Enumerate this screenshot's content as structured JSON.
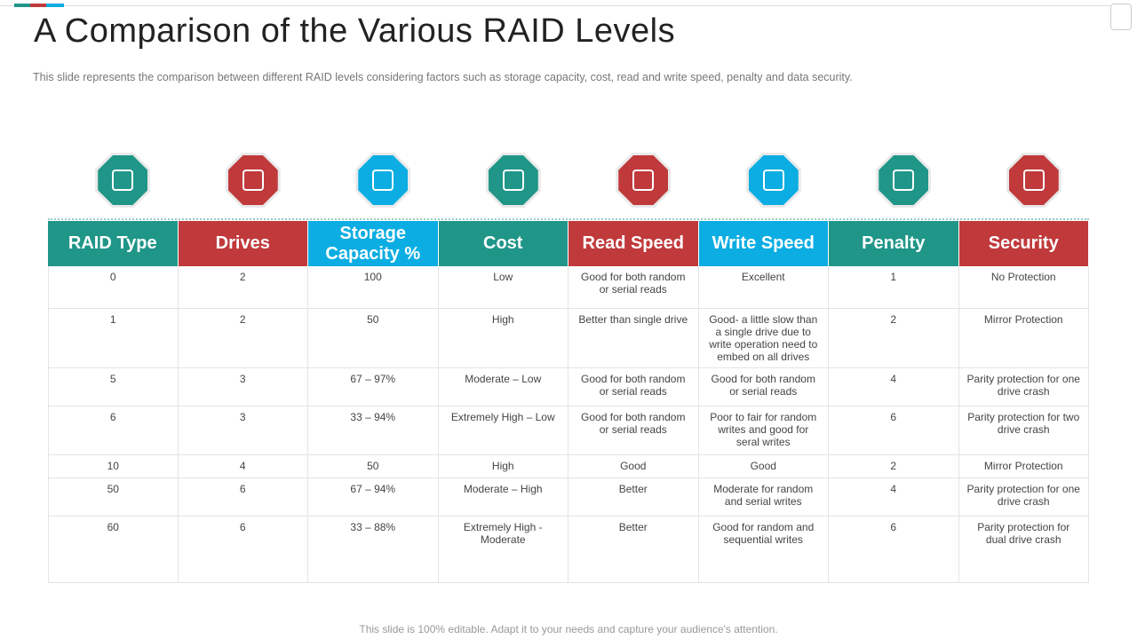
{
  "title": "A Comparison of the Various RAID Levels",
  "subtitle": "This slide represents the comparison between different RAID levels considering factors such as storage capacity, cost, read and write speed, penalty and data security.",
  "table": {
    "headers": [
      "RAID Type",
      "Drives",
      "Storage Capacity %",
      "Cost",
      "Read Speed",
      "Write Speed",
      "Penalty",
      "Security"
    ],
    "rows": [
      [
        "0",
        "2",
        "100",
        "Low",
        "Good for both random or serial reads",
        "Excellent",
        "1",
        "No Protection"
      ],
      [
        "1",
        "2",
        "50",
        "High",
        "Better than single drive",
        "Good- a little slow than a single drive due to write operation need to embed on all drives",
        "2",
        "Mirror Protection"
      ],
      [
        "5",
        "3",
        "67 – 97%",
        "Moderate – Low",
        "Good for both random or serial reads",
        "Good for both random or serial reads",
        "4",
        "Parity protection for one drive crash"
      ],
      [
        "6",
        "3",
        "33 – 94%",
        "Extremely High – Low",
        "Good for both random or serial reads",
        "Poor to fair for random writes and good for seral writes",
        "6",
        "Parity protection for two drive crash"
      ],
      [
        "10",
        "4",
        "50",
        "High",
        "Good",
        "Good",
        "2",
        "Mirror Protection"
      ],
      [
        "50",
        "6",
        "67 – 94%",
        "Moderate – High",
        "Better",
        "Moderate for random and serial writes",
        "4",
        "Parity protection for one drive crash"
      ],
      [
        "60",
        "6",
        "33 – 88%",
        "Extremely High - Moderate",
        "Better",
        "Good for random and sequential writes",
        "6",
        "Parity protection for dual drive crash"
      ]
    ]
  },
  "footer": "This slide is 100% editable. Adapt it to your needs and capture your audience's attention."
}
